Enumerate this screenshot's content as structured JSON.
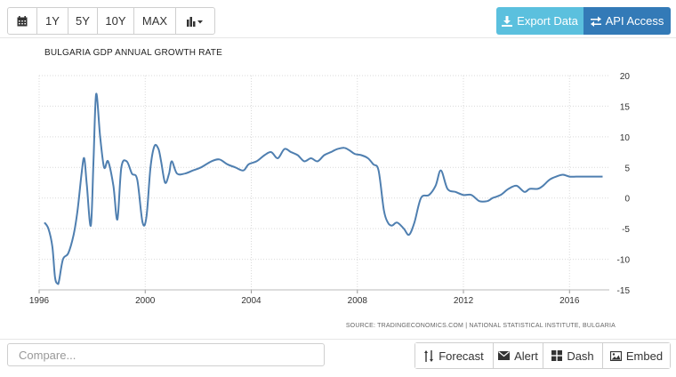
{
  "toolbar": {
    "items": [
      {
        "type": "icon",
        "icon": "calendar-icon"
      },
      {
        "label": "1Y"
      },
      {
        "label": "5Y"
      },
      {
        "label": "10Y"
      },
      {
        "label": "MAX"
      },
      {
        "type": "icon",
        "icon": "chart-type-icon"
      }
    ]
  },
  "export": {
    "label": "Export Data",
    "icon": "download-icon",
    "color": "#5bc0de"
  },
  "api": {
    "label": "API Access",
    "icon": "exchange-icon",
    "color": "#337ab7"
  },
  "chart_title": "BULGARIA GDP ANNUAL GROWTH RATE",
  "source_text": "SOURCE: TRADINGECONOMICS.COM | NATIONAL STATISTICAL INSTITUTE, BULGARIA",
  "compare": {
    "placeholder": "Compare..."
  },
  "actions": [
    {
      "label": "Forecast",
      "icon": "sort-icon"
    },
    {
      "label": "Alert",
      "icon": "envelope-icon"
    },
    {
      "label": "Dash",
      "icon": "grid-icon"
    },
    {
      "label": "Embed",
      "icon": "picture-icon"
    }
  ],
  "chart_data": {
    "type": "line",
    "title": "BULGARIA GDP ANNUAL GROWTH RATE",
    "xlabel": "",
    "ylabel": "",
    "xlim": [
      1996,
      2017.5
    ],
    "ylim": [
      -15,
      20
    ],
    "x_ticks": [
      1996,
      2000,
      2004,
      2008,
      2012,
      2016
    ],
    "y_ticks": [
      20,
      15,
      10,
      5,
      0,
      -5,
      -10,
      -15
    ],
    "grid": true,
    "line_color": "#4f7fb0",
    "series": [
      {
        "x": [
          1996.2,
          1996.35,
          1996.5,
          1996.6,
          1996.7,
          1996.75,
          1996.9,
          1997.1,
          1997.3,
          1997.45,
          1997.6,
          1997.7,
          1997.8,
          1997.95,
          1998.05,
          1998.15,
          1998.3,
          1998.45,
          1998.6,
          1998.8,
          1998.95,
          1999.1,
          1999.3,
          1999.5,
          1999.7,
          1999.9,
          2000.05,
          2000.2,
          2000.35,
          2000.5,
          2000.6,
          2000.75,
          2000.9,
          2001.0,
          2001.2,
          2001.5,
          2001.8,
          2002.1,
          2002.5,
          2002.8,
          2003.1,
          2003.4,
          2003.7,
          2003.9,
          2004.2,
          2004.5,
          2004.75,
          2005.0,
          2005.25,
          2005.5,
          2005.75,
          2006.0,
          2006.25,
          2006.5,
          2006.75,
          2007.0,
          2007.25,
          2007.5,
          2007.7,
          2007.9,
          2008.15,
          2008.4,
          2008.6,
          2008.8,
          2009.0,
          2009.15,
          2009.3,
          2009.5,
          2009.75,
          2009.95,
          2010.15,
          2010.4,
          2010.7,
          2010.95,
          2011.15,
          2011.4,
          2011.7,
          2012.0,
          2012.3,
          2012.6,
          2012.9,
          2013.1,
          2013.4,
          2013.7,
          2014.0,
          2014.3,
          2014.5,
          2014.8,
          2015.0,
          2015.25,
          2015.5,
          2015.75,
          2016.0,
          2016.25,
          2016.5,
          2016.75,
          2017.0,
          2017.25
        ],
        "y": [
          -4,
          -5,
          -8,
          -13,
          -14,
          -13.5,
          -10,
          -9,
          -6,
          -2,
          4,
          6.5,
          2,
          -4.5,
          6,
          17,
          10,
          5,
          6,
          2,
          -3.5,
          5,
          6,
          4,
          3,
          -4,
          -3,
          5,
          8.5,
          8,
          6,
          2.5,
          4,
          6,
          4,
          4,
          4.5,
          5,
          6,
          6.3,
          5.5,
          5,
          4.5,
          5.5,
          6,
          7,
          7.5,
          6.5,
          8,
          7.5,
          7,
          6,
          6.5,
          6,
          7,
          7.5,
          8,
          8.2,
          7.8,
          7.2,
          7,
          6.5,
          5.5,
          4.5,
          -2,
          -4,
          -4.5,
          -4,
          -5,
          -6,
          -4,
          0,
          0.5,
          2,
          4.5,
          1.5,
          1,
          0.5,
          0.5,
          -0.5,
          -0.5,
          0,
          0.5,
          1.5,
          2,
          1,
          1.5,
          1.5,
          2,
          3,
          3.5,
          3.8,
          3.5,
          3.5,
          3.5,
          3.5,
          3.5,
          3.5
        ]
      }
    ]
  }
}
